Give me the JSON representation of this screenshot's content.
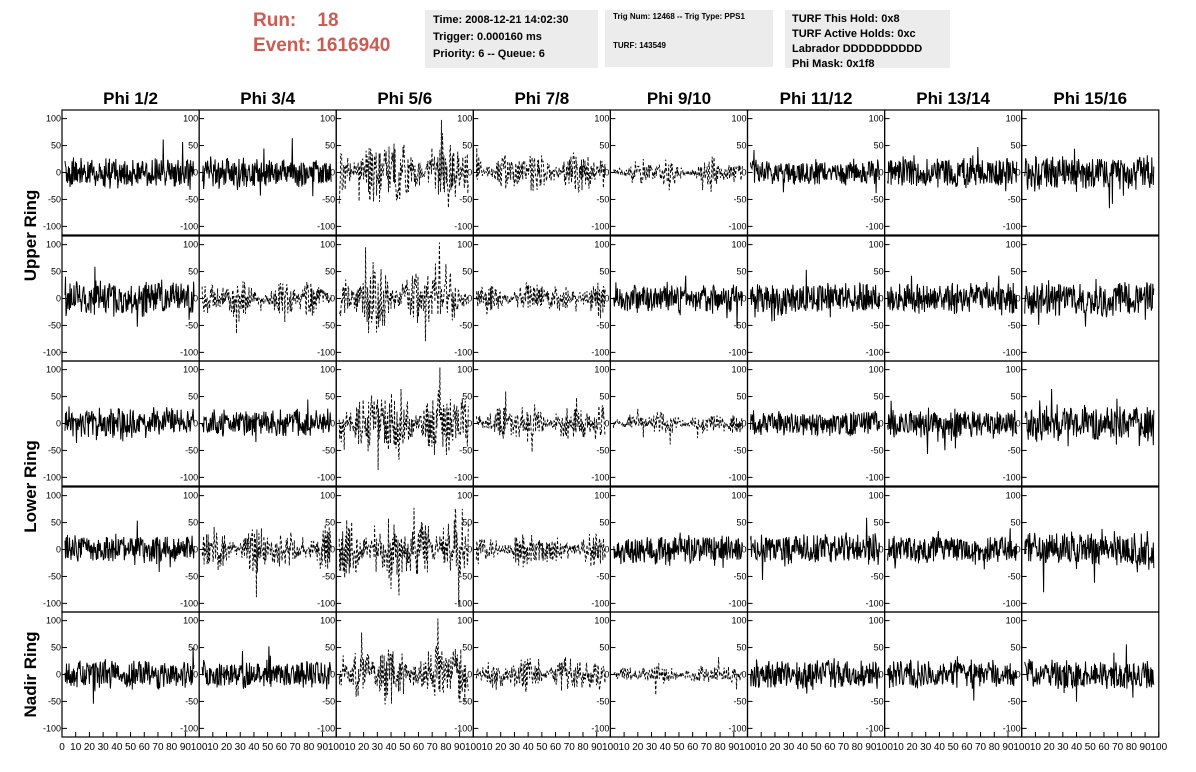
{
  "header": {
    "run_label": "Run:",
    "run_value": "18",
    "event_label": "Event:",
    "event_value": "1616940",
    "time_line": "Time: 2008-12-21 14:02:30",
    "trigger_line": "Trigger: 0.000160 ms",
    "priority_line": "Priority: 6 -- Queue: 6",
    "trig_line": "Trig Num: 12468 -- Trig Type: PPS1",
    "turf_line": "TURF: 143549",
    "turf_hold": "TURF This Hold: 0x8",
    "turf_active": "TURF Active Holds: 0xc",
    "labrador": "Labrador DDDDDDDDDD",
    "phi_mask": "Phi Mask: 0x1f8"
  },
  "colors": {
    "header_text": "#cd5b52",
    "info_box_bg": "#ececec",
    "trace": "#000000"
  },
  "chart_data": {
    "type": "line",
    "columns": [
      "Phi 1/2",
      "Phi 3/4",
      "Phi 5/6",
      "Phi 7/8",
      "Phi 9/10",
      "Phi 11/12",
      "Phi 13/14",
      "Phi 15/16"
    ],
    "rows": [
      "Upper Ring",
      "Lower Ring",
      "Nadir Ring"
    ],
    "panels_per_row": [
      2,
      2,
      1
    ],
    "xlim": [
      0,
      100
    ],
    "ylim": [
      -100,
      100
    ],
    "x_ticks": [
      "0",
      "10",
      "20",
      "30",
      "40",
      "50",
      "60",
      "70",
      "80",
      "90",
      "100"
    ],
    "y_ticks": [
      "100",
      "50",
      "0",
      "-50",
      "-100"
    ],
    "style_rule": "dashed where the antenna is in the phi mask",
    "panels": [
      {
        "row": 0,
        "col": 0,
        "amp": 22,
        "style": "solid"
      },
      {
        "row": 0,
        "col": 1,
        "amp": 22,
        "style": "solid"
      },
      {
        "row": 0,
        "col": 2,
        "amp": 55,
        "style": "dashed"
      },
      {
        "row": 0,
        "col": 3,
        "amp": 32,
        "style": "dashed"
      },
      {
        "row": 0,
        "col": 4,
        "amp": 20,
        "style": "dashed"
      },
      {
        "row": 0,
        "col": 5,
        "amp": 18,
        "style": "solid"
      },
      {
        "row": 0,
        "col": 6,
        "amp": 22,
        "style": "solid"
      },
      {
        "row": 0,
        "col": 7,
        "amp": 25,
        "style": "solid"
      },
      {
        "row": 1,
        "col": 0,
        "amp": 25,
        "style": "solid"
      },
      {
        "row": 1,
        "col": 1,
        "amp": 30,
        "style": "dashed"
      },
      {
        "row": 1,
        "col": 2,
        "amp": 50,
        "style": "dashed"
      },
      {
        "row": 1,
        "col": 3,
        "amp": 25,
        "style": "dashed"
      },
      {
        "row": 1,
        "col": 4,
        "amp": 22,
        "style": "solid"
      },
      {
        "row": 1,
        "col": 5,
        "amp": 22,
        "style": "solid"
      },
      {
        "row": 1,
        "col": 6,
        "amp": 22,
        "style": "solid"
      },
      {
        "row": 1,
        "col": 7,
        "amp": 25,
        "style": "solid"
      },
      {
        "row": 2,
        "col": 0,
        "amp": 22,
        "style": "solid"
      },
      {
        "row": 2,
        "col": 1,
        "amp": 20,
        "style": "solid"
      },
      {
        "row": 2,
        "col": 2,
        "amp": 55,
        "style": "dashed"
      },
      {
        "row": 2,
        "col": 3,
        "amp": 30,
        "style": "dashed"
      },
      {
        "row": 2,
        "col": 4,
        "amp": 18,
        "style": "dashed"
      },
      {
        "row": 2,
        "col": 5,
        "amp": 18,
        "style": "solid"
      },
      {
        "row": 2,
        "col": 6,
        "amp": 22,
        "style": "solid"
      },
      {
        "row": 2,
        "col": 7,
        "amp": 25,
        "style": "solid"
      },
      {
        "row": 3,
        "col": 0,
        "amp": 20,
        "style": "solid"
      },
      {
        "row": 3,
        "col": 1,
        "amp": 35,
        "style": "dashed"
      },
      {
        "row": 3,
        "col": 2,
        "amp": 55,
        "style": "dashed"
      },
      {
        "row": 3,
        "col": 3,
        "amp": 25,
        "style": "dashed"
      },
      {
        "row": 3,
        "col": 4,
        "amp": 22,
        "style": "solid"
      },
      {
        "row": 3,
        "col": 5,
        "amp": 22,
        "style": "solid"
      },
      {
        "row": 3,
        "col": 6,
        "amp": 20,
        "style": "solid"
      },
      {
        "row": 3,
        "col": 7,
        "amp": 25,
        "style": "solid"
      },
      {
        "row": 4,
        "col": 0,
        "amp": 22,
        "style": "solid"
      },
      {
        "row": 4,
        "col": 1,
        "amp": 20,
        "style": "solid"
      },
      {
        "row": 4,
        "col": 2,
        "amp": 50,
        "style": "dashed"
      },
      {
        "row": 4,
        "col": 3,
        "amp": 28,
        "style": "dashed"
      },
      {
        "row": 4,
        "col": 4,
        "amp": 15,
        "style": "dashed"
      },
      {
        "row": 4,
        "col": 5,
        "amp": 22,
        "style": "solid"
      },
      {
        "row": 4,
        "col": 6,
        "amp": 20,
        "style": "solid"
      },
      {
        "row": 4,
        "col": 7,
        "amp": 22,
        "style": "solid"
      }
    ]
  }
}
